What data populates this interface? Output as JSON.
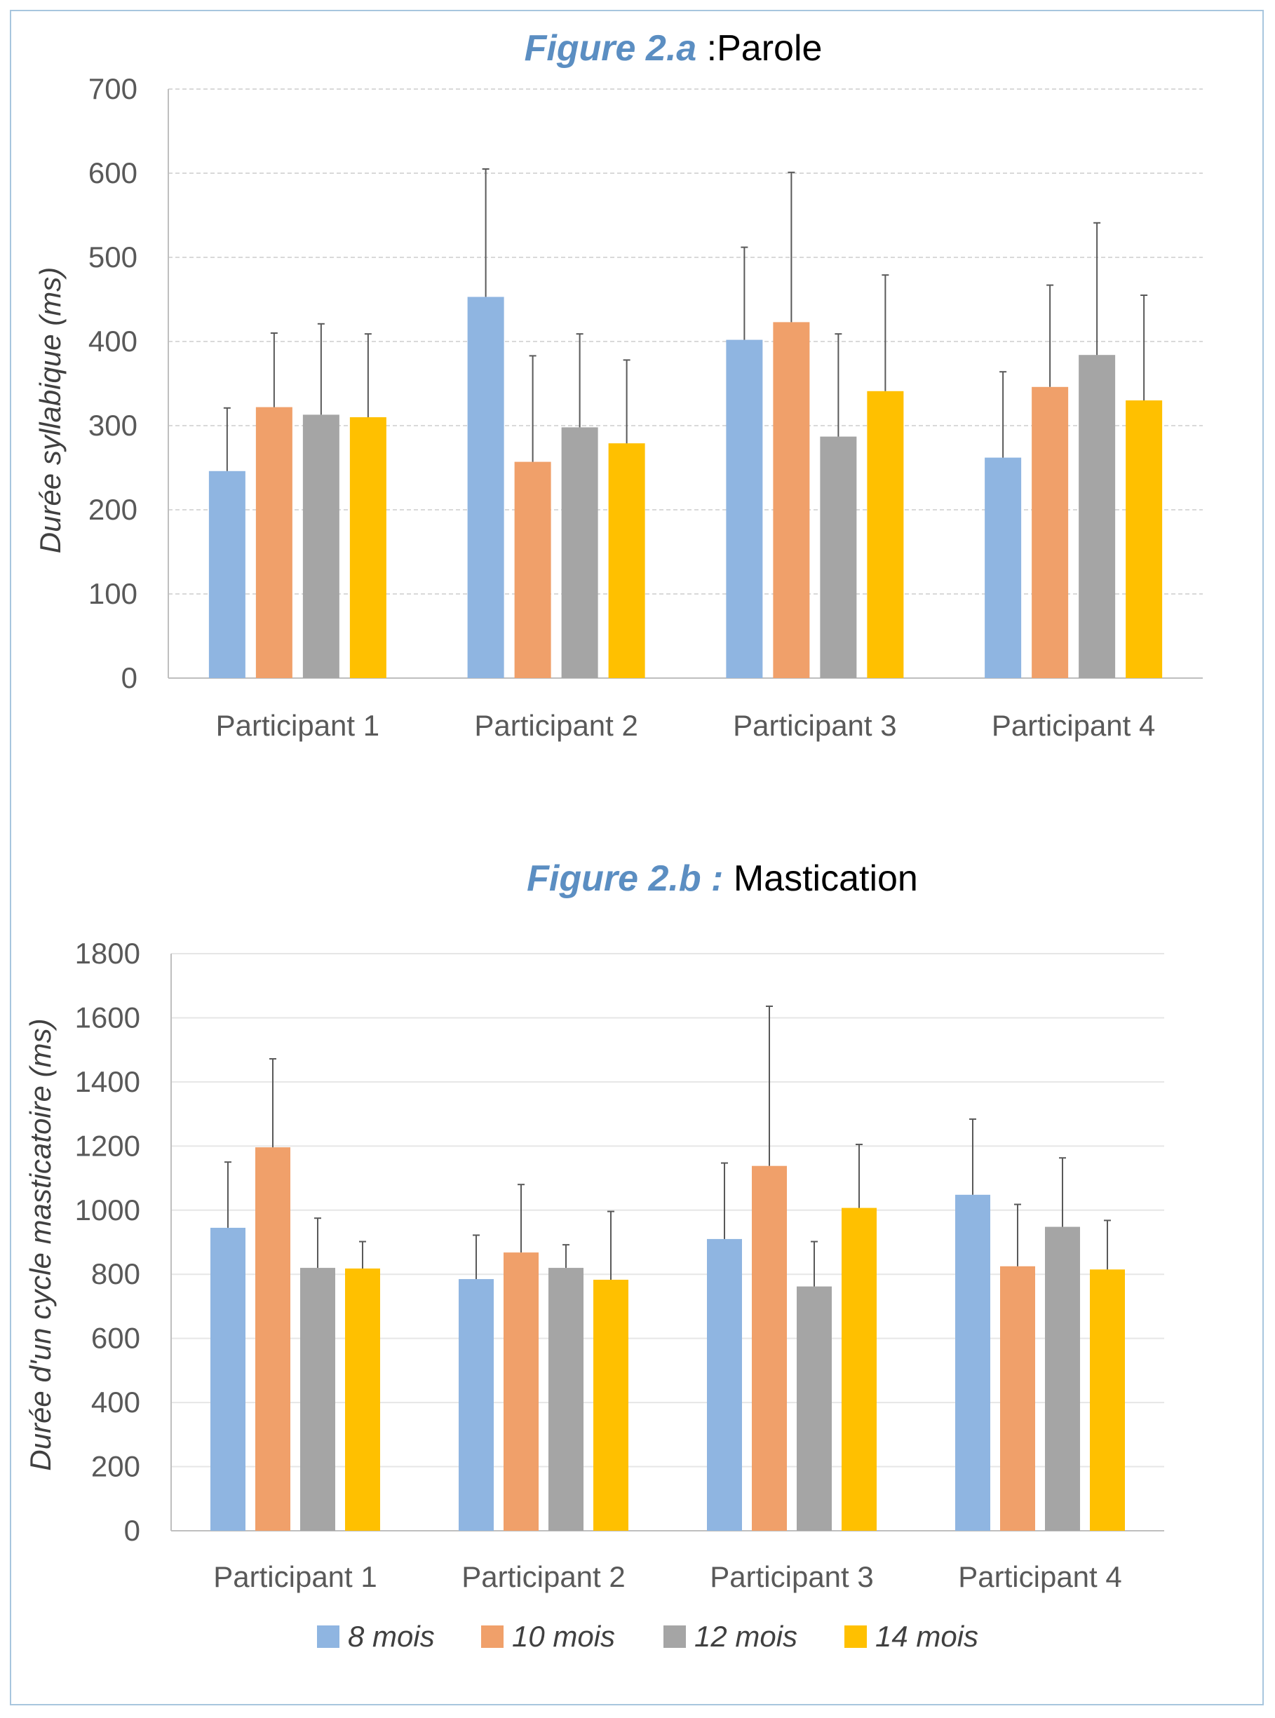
{
  "colors": {
    "8 mois": "#8fb5e1",
    "10 mois": "#f0a06a",
    "12 mois": "#a5a5a5",
    "14 mois": "#ffc000",
    "figure_label": "#5b8ec2"
  },
  "chart_data": [
    {
      "type": "bar",
      "title_figure": "Figure 2.a",
      "title_text": " :Parole",
      "ylabel": "Durée syllabique (ms)",
      "xlabel": "",
      "ylim": [
        0,
        700
      ],
      "yticks": [
        0,
        100,
        200,
        300,
        400,
        500,
        600,
        700
      ],
      "grid": true,
      "categories": [
        "Participant 1",
        "Participant 2",
        "Participant 3",
        "Participant 4"
      ],
      "series": [
        {
          "name": "8 mois",
          "values": [
            246,
            453,
            402,
            262
          ],
          "errors": [
            75,
            152,
            110,
            102
          ]
        },
        {
          "name": "10 mois",
          "values": [
            322,
            257,
            423,
            346
          ],
          "errors": [
            88,
            126,
            178,
            121
          ]
        },
        {
          "name": "12 mois",
          "values": [
            313,
            298,
            287,
            384
          ],
          "errors": [
            108,
            111,
            122,
            157
          ]
        },
        {
          "name": "14 mois",
          "values": [
            310,
            279,
            341,
            330
          ],
          "errors": [
            99,
            99,
            138,
            125
          ]
        }
      ]
    },
    {
      "type": "bar",
      "title_figure": "Figure 2.b :",
      "title_text": " Mastication",
      "ylabel": "Durée d'un cycle masticatoire (ms)",
      "xlabel": "",
      "ylim": [
        0,
        1800
      ],
      "yticks": [
        0,
        200,
        400,
        600,
        800,
        1000,
        1200,
        1400,
        1600,
        1800
      ],
      "grid": true,
      "categories": [
        "Participant 1",
        "Participant 2",
        "Participant 3",
        "Participant 4"
      ],
      "series": [
        {
          "name": "8 mois",
          "values": [
            945,
            785,
            910,
            1048
          ],
          "errors": [
            205,
            137,
            237,
            236
          ]
        },
        {
          "name": "10 mois",
          "values": [
            1196,
            868,
            1138,
            825
          ],
          "errors": [
            276,
            212,
            498,
            193
          ]
        },
        {
          "name": "12 mois",
          "values": [
            820,
            820,
            762,
            948
          ],
          "errors": [
            155,
            72,
            140,
            215
          ]
        },
        {
          "name": "14 mois",
          "values": [
            818,
            783,
            1007,
            815
          ],
          "errors": [
            84,
            213,
            198,
            153
          ]
        }
      ]
    }
  ],
  "legend": {
    "position": "bottom",
    "items": [
      "8 mois",
      "10 mois",
      "12 mois",
      "14 mois"
    ]
  }
}
